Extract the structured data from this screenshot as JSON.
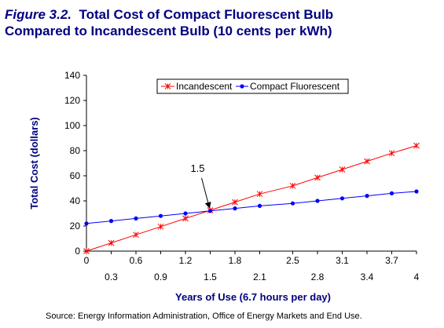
{
  "figure_label": "Figure 3.2.",
  "title_line1": "Total Cost of Compact Fluorescent Bulb",
  "title_line2": "Compared to Incandescent Bulb (10 cents per kWh)",
  "source": "Source:  Energy Information Administration, Office of Energy Markets and End Use.",
  "colors": {
    "title": "#000080",
    "incandescent": "#ff0000",
    "fluorescent": "#0000ff",
    "axis": "#000000"
  },
  "chart_data": {
    "type": "line",
    "xlabel": "Years of Use (6.7 hours per day)",
    "ylabel": "Total Cost (dollars)",
    "xlim": [
      0,
      4
    ],
    "ylim": [
      0,
      140
    ],
    "yticks": [
      "0",
      "20",
      "40",
      "60",
      "80",
      "100",
      "120",
      "140"
    ],
    "xticks_upper": [
      "0",
      "0.6",
      "1.2",
      "1.8",
      "2.5",
      "3.1",
      "3.7"
    ],
    "xticks_lower": [
      "0.3",
      "0.9",
      "1.5",
      "2.1",
      "2.8",
      "3.4",
      "4"
    ],
    "legend_position": "top-right",
    "annotation": {
      "text": "1.5",
      "x": 1.5,
      "y": 32
    },
    "x": [
      0,
      0.3,
      0.6,
      0.9,
      1.2,
      1.5,
      1.8,
      2.1,
      2.5,
      2.8,
      3.1,
      3.4,
      3.7,
      4
    ],
    "series": [
      {
        "name": "Incandescent",
        "marker": "star",
        "values": [
          0,
          6.5,
          13,
          19.5,
          26,
          32.5,
          39,
          45.5,
          52,
          58.5,
          65,
          71.5,
          78,
          84
        ]
      },
      {
        "name": "Compact Fluorescent",
        "marker": "dot",
        "values": [
          22,
          24,
          26,
          28,
          30,
          32,
          34,
          36,
          38,
          40,
          42,
          44,
          46,
          47.5
        ]
      }
    ]
  }
}
